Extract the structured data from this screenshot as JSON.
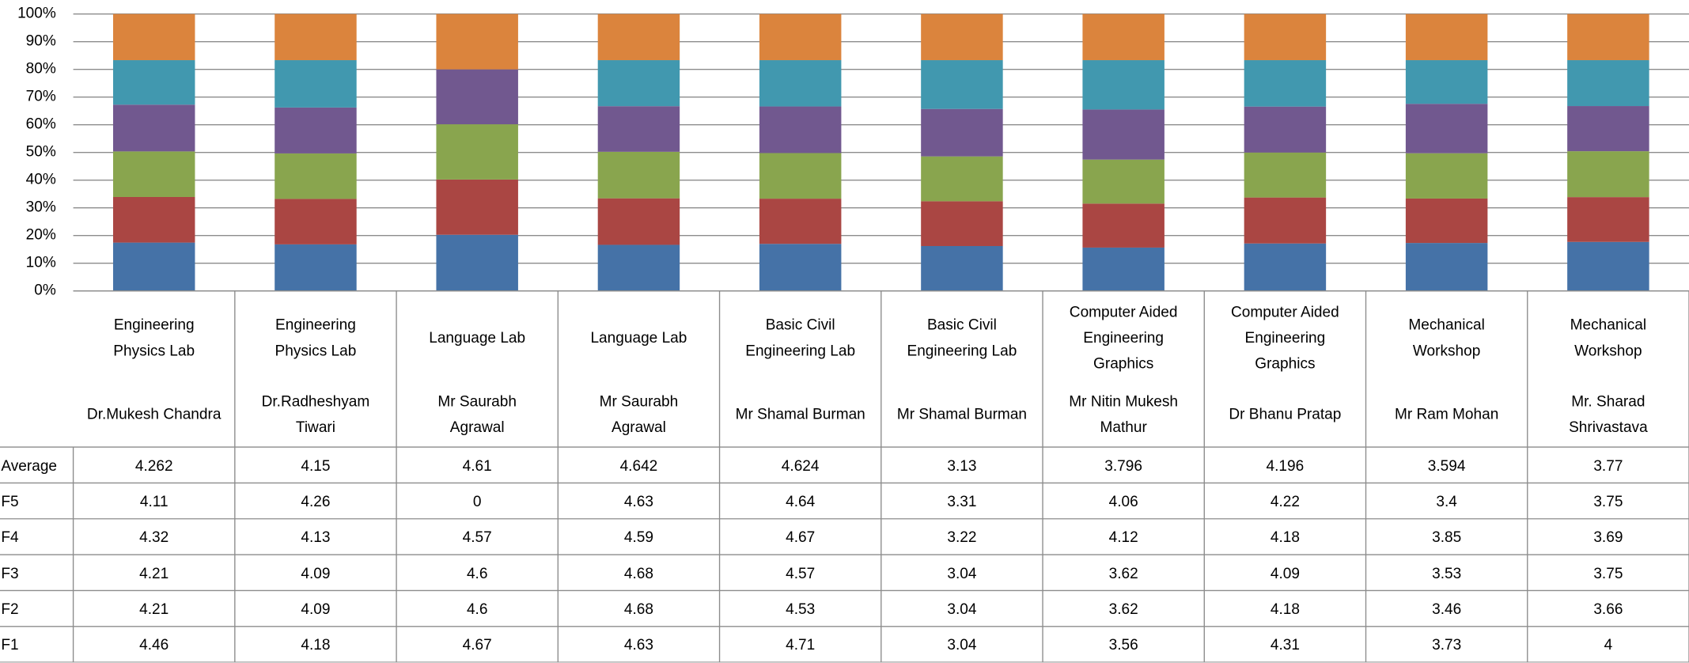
{
  "chart_data": {
    "type": "stacked_percent_bar",
    "categories": [
      "Engineering Physics Lab",
      "Engineering Physics Lab",
      "Language Lab",
      "Language Lab",
      "Basic Civil Engineering Lab",
      "Basic Civil Engineering Lab",
      "Computer Aided Engineering Graphics",
      "Computer Aided Engineering Graphics",
      "Mechanical Workshop",
      "Mechanical Workshop"
    ],
    "instructors": [
      "Dr.Mukesh Chandra",
      "Dr.Radheshyam Tiwari",
      "Mr Saurabh Agrawal",
      "Mr Saurabh Agrawal",
      "Mr Shamal Burman",
      "Mr Shamal Burman",
      "Mr Nitin Mukesh Mathur",
      "Dr Bhanu Pratap",
      "Mr Ram Mohan",
      "Mr. Sharad Shrivastava"
    ],
    "series": [
      {
        "name": "Average",
        "color": "#db843d",
        "values": [
          4.262,
          4.15,
          4.61,
          4.642,
          4.624,
          3.13,
          3.796,
          4.196,
          3.594,
          3.77
        ]
      },
      {
        "name": "F5",
        "color": "#4198af",
        "values": [
          4.11,
          4.26,
          0,
          4.63,
          4.64,
          3.31,
          4.06,
          4.22,
          3.4,
          3.75
        ]
      },
      {
        "name": "F4",
        "color": "#71588f",
        "values": [
          4.32,
          4.13,
          4.57,
          4.59,
          4.67,
          3.22,
          4.12,
          4.18,
          3.85,
          3.69
        ]
      },
      {
        "name": "F3",
        "color": "#89a54e",
        "values": [
          4.21,
          4.09,
          4.6,
          4.68,
          4.57,
          3.04,
          3.62,
          4.09,
          3.53,
          3.75
        ]
      },
      {
        "name": "F2",
        "color": "#aa4643",
        "values": [
          4.21,
          4.09,
          4.6,
          4.68,
          4.53,
          3.04,
          3.62,
          4.18,
          3.46,
          3.66
        ]
      },
      {
        "name": "F1",
        "color": "#4572a7",
        "values": [
          4.46,
          4.18,
          4.67,
          4.63,
          4.71,
          3.04,
          3.56,
          4.31,
          3.73,
          4
        ]
      }
    ],
    "ylim": [
      0,
      100
    ],
    "yticks": [
      {
        "value": 0,
        "label": "0%"
      },
      {
        "value": 10,
        "label": "10%"
      },
      {
        "value": 20,
        "label": "20%"
      },
      {
        "value": 30,
        "label": "30%"
      },
      {
        "value": 40,
        "label": "40%"
      },
      {
        "value": 50,
        "label": "50%"
      },
      {
        "value": 60,
        "label": "60%"
      },
      {
        "value": 70,
        "label": "70%"
      },
      {
        "value": 80,
        "label": "80%"
      },
      {
        "value": 90,
        "label": "90%"
      },
      {
        "value": 100,
        "label": "100%"
      }
    ],
    "grid": true
  }
}
